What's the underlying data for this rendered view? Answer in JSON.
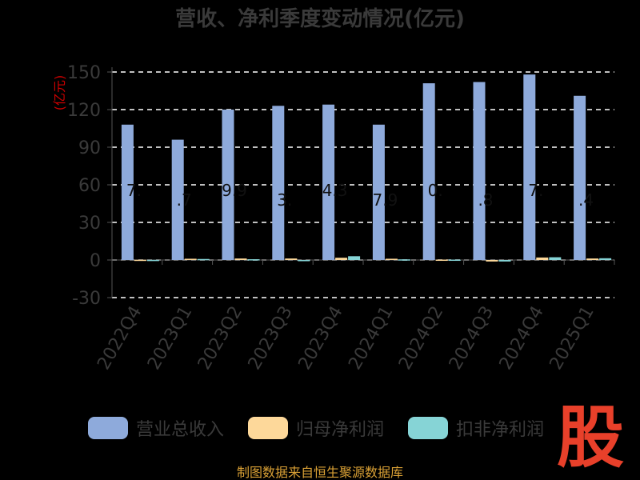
{
  "chart_data": {
    "type": "bar",
    "title": "营收、净利季度变动情况(亿元)",
    "ylabel": "(亿元)",
    "ylim": [
      -30,
      150
    ],
    "yticks": [
      -30,
      0,
      30,
      60,
      90,
      120,
      150
    ],
    "grid": true,
    "legend_position": "bottom",
    "categories": [
      "2022Q4",
      "2023Q1",
      "2023Q2",
      "2023Q3",
      "2023Q4",
      "2024Q1",
      "2024Q2",
      "2024Q3",
      "2024Q4",
      "2025Q1"
    ],
    "series": [
      {
        "name": "营业总收入",
        "color": "#8eaadb",
        "values": [
          108,
          96,
          120,
          123,
          124,
          108,
          141,
          142,
          148,
          131
        ]
      },
      {
        "name": "归母净利润",
        "color": "#fdd89a",
        "values": [
          0.2,
          1.0,
          1.2,
          1.2,
          1.8,
          1.0,
          0.3,
          -1.2,
          2.0,
          1.2
        ]
      },
      {
        "name": "扣非净利润",
        "color": "#86d4d6",
        "values": [
          0.1,
          0.8,
          0.6,
          -0.6,
          3.0,
          0.5,
          0.3,
          -1.2,
          2.2,
          1.4
        ]
      }
    ],
    "data_labels": [
      "7.",
      ".7",
      "9.9",
      "3.",
      "4.3",
      "7.9",
      "0.",
      ".8",
      "7.",
      ".4"
    ]
  },
  "source": "制图数据来自恒生聚源数据库",
  "logo_char": "股"
}
